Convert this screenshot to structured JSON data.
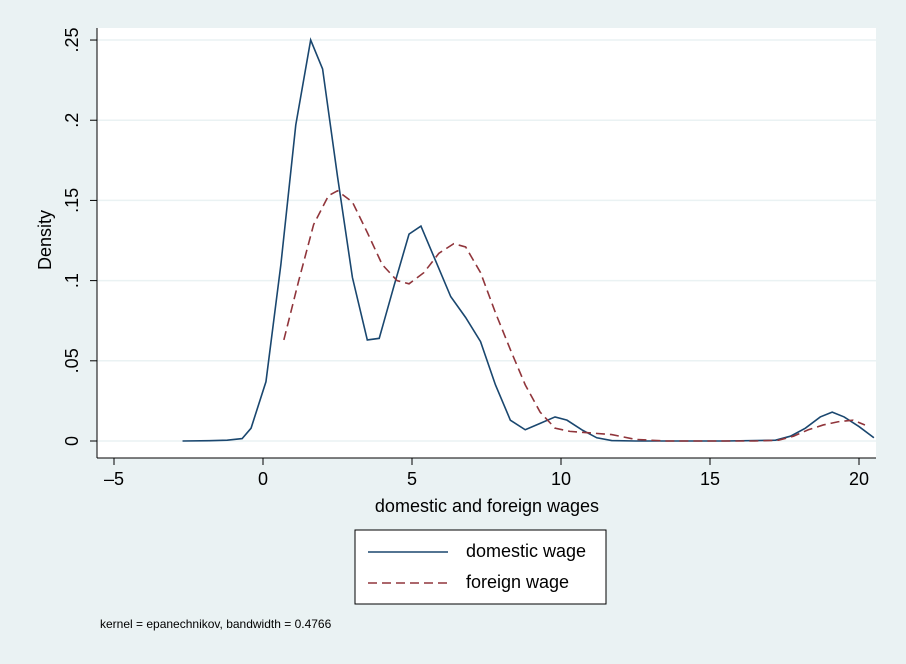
{
  "chart_data": {
    "type": "line",
    "xlabel": "domestic and foreign wages",
    "ylabel": "Density",
    "note": "kernel = epanechnikov, bandwidth = 0.4766",
    "xlim": [
      -5.57,
      20.57
    ],
    "ylim": [
      -0.0106,
      0.2575
    ],
    "xticks": [
      -5,
      0,
      5,
      10,
      15,
      20
    ],
    "yticks": [
      0,
      {
        "value": 0.05,
        "label": ".05"
      },
      {
        "value": 0.1,
        "label": ".1"
      },
      {
        "value": 0.15,
        "label": ".15"
      },
      {
        "value": 0.2,
        "label": ".2"
      },
      {
        "value": 0.25,
        "label": ".25"
      }
    ],
    "grid": true,
    "series": [
      {
        "name": "domestic wage",
        "color": "#1a476f",
        "dash": false,
        "x": [
          -2.7,
          -1.8,
          -1.2,
          -0.7,
          -0.4,
          0.1,
          0.6,
          1.1,
          1.6,
          2.0,
          2.5,
          3.0,
          3.5,
          3.9,
          4.4,
          4.9,
          5.3,
          5.8,
          6.3,
          6.8,
          7.3,
          7.8,
          8.3,
          8.8,
          9.3,
          9.8,
          10.2,
          10.7,
          11.2,
          11.7,
          12.5,
          14,
          15.5,
          17.2,
          17.7,
          18.2,
          18.7,
          19.1,
          19.5,
          20.0,
          20.5
        ],
        "values": [
          0,
          0.0002,
          0.0005,
          0.0015,
          0.008,
          0.037,
          0.11,
          0.197,
          0.25,
          0.232,
          0.165,
          0.102,
          0.063,
          0.064,
          0.097,
          0.129,
          0.134,
          0.112,
          0.09,
          0.077,
          0.062,
          0.035,
          0.013,
          0.007,
          0.011,
          0.015,
          0.013,
          0.007,
          0.002,
          0.0003,
          0,
          0,
          0,
          0.0005,
          0.003,
          0.008,
          0.015,
          0.018,
          0.015,
          0.009,
          0.002
        ]
      },
      {
        "name": "foreign wage",
        "color": "#90353b",
        "dash": true,
        "x": [
          0.7,
          1.2,
          1.7,
          2.2,
          2.5,
          3.0,
          3.5,
          4.0,
          4.5,
          4.9,
          5.4,
          5.9,
          6.4,
          6.8,
          7.3,
          7.8,
          8.3,
          8.8,
          9.3,
          9.8,
          10.3,
          11.0,
          11.7,
          12.5,
          13.5,
          15,
          16.5,
          17.3,
          17.8,
          18.3,
          18.8,
          19.3,
          19.8,
          20.2
        ],
        "values": [
          0.063,
          0.1,
          0.135,
          0.153,
          0.156,
          0.149,
          0.13,
          0.11,
          0.1,
          0.098,
          0.105,
          0.117,
          0.123,
          0.121,
          0.105,
          0.08,
          0.057,
          0.035,
          0.018,
          0.008,
          0.006,
          0.005,
          0.004,
          0.001,
          0,
          0,
          0,
          0.0005,
          0.003,
          0.007,
          0.01,
          0.012,
          0.013,
          0.01
        ]
      }
    ]
  }
}
